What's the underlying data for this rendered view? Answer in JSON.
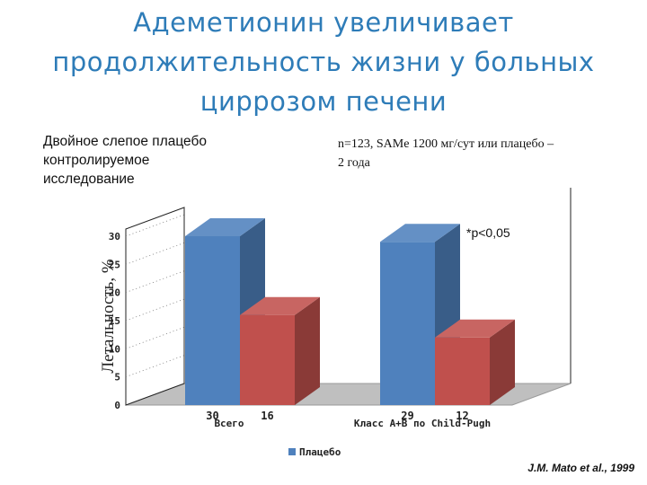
{
  "slide": {
    "title_lines": [
      "Адеметионин увеличивает",
      "продолжительность жизни у больных",
      "циррозом печени"
    ],
    "study_design": "Двойное слепое плацебо\nконтролируемое\nисследование",
    "study_params": "n=123, SAMe 1200 мг/сут или плацебо –\n2 года",
    "citation": "J.M. Mato et al., 1999"
  },
  "chart_data": {
    "type": "bar",
    "style": "3d-clustered",
    "categories": [
      "Всего",
      "Класс А+В по Child-Pugh"
    ],
    "series": [
      {
        "name": "Плацебо",
        "values": [
          30,
          29
        ],
        "color": "#4f81bd"
      },
      {
        "name": "",
        "values": [
          16,
          12
        ],
        "color": "#c0504d"
      }
    ],
    "data_labels": [
      [
        "30",
        "16"
      ],
      [
        "29",
        "12"
      ]
    ],
    "ylabel": "Летальность, %",
    "ylim": [
      0,
      30
    ],
    "yticks": [
      "0",
      "5",
      "10",
      "15",
      "20",
      "25",
      "30"
    ],
    "grid": true,
    "legend_position": "bottom",
    "annotation": "*p<0,05"
  }
}
